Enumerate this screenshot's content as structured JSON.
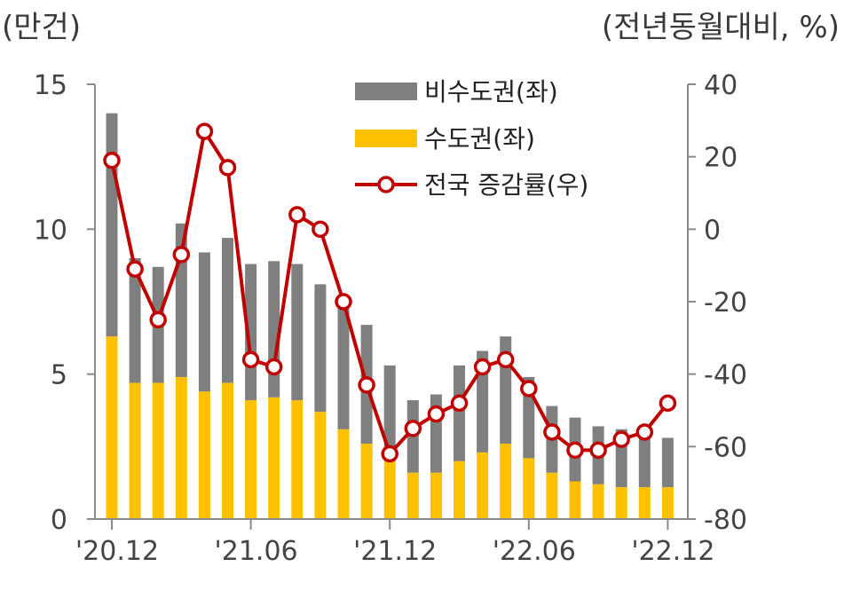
{
  "chart_data": {
    "type": "bar+line",
    "left_axis_unit": "(만건)",
    "right_axis_unit": "(전년동월대비, %)",
    "left_ylim": [
      0,
      15
    ],
    "left_ticks": [
      "0",
      "5",
      "10",
      "15"
    ],
    "left_tick_values": [
      0,
      5,
      10,
      15
    ],
    "right_ylim": [
      -80,
      40
    ],
    "right_ticks": [
      "-80",
      "-60",
      "-40",
      "-20",
      "0",
      "20",
      "40"
    ],
    "right_tick_values": [
      -80,
      -60,
      -40,
      -20,
      0,
      20,
      40
    ],
    "categories": [
      "20.12",
      "21.01",
      "21.02",
      "21.03",
      "21.04",
      "21.05",
      "21.06",
      "21.07",
      "21.08",
      "21.09",
      "21.10",
      "21.11",
      "21.12",
      "22.01",
      "22.02",
      "22.03",
      "22.04",
      "22.05",
      "22.06",
      "22.07",
      "22.08",
      "22.09",
      "22.10",
      "22.11",
      "22.12"
    ],
    "x_tick_labels": [
      {
        "index": 0,
        "label": "'20.12"
      },
      {
        "index": 6,
        "label": "'21.06"
      },
      {
        "index": 12,
        "label": "'21.12"
      },
      {
        "index": 18,
        "label": "'22.06"
      },
      {
        "index": 24,
        "label": "'22.12"
      }
    ],
    "series": [
      {
        "name": "비수도권(좌)",
        "type": "bar",
        "color": "#7f7f7f",
        "values": [
          7.7,
          4.3,
          4.0,
          5.3,
          4.8,
          5.0,
          4.7,
          4.7,
          4.7,
          4.4,
          4.4,
          4.1,
          3.3,
          2.5,
          2.7,
          3.3,
          3.5,
          3.7,
          2.8,
          2.3,
          2.2,
          2.0,
          2.0,
          1.8,
          1.7
        ]
      },
      {
        "name": "수도권(좌)",
        "type": "bar",
        "color": "#ffc000",
        "values": [
          6.3,
          4.7,
          4.7,
          4.9,
          4.4,
          4.7,
          4.1,
          4.2,
          4.1,
          3.7,
          3.1,
          2.6,
          2.0,
          1.6,
          1.6,
          2.0,
          2.3,
          2.6,
          2.1,
          1.6,
          1.3,
          1.2,
          1.1,
          1.1,
          1.1
        ]
      },
      {
        "name": "전국 증감률(우)",
        "type": "line",
        "color": "#c00000",
        "values": [
          19,
          -11,
          -25,
          -7,
          27,
          17,
          -36,
          -38,
          4,
          0,
          -20,
          -43,
          -62,
          -55,
          -51,
          -48,
          -38,
          -36,
          -44,
          -56,
          -61,
          -61,
          -58,
          -56,
          -48
        ]
      }
    ]
  }
}
